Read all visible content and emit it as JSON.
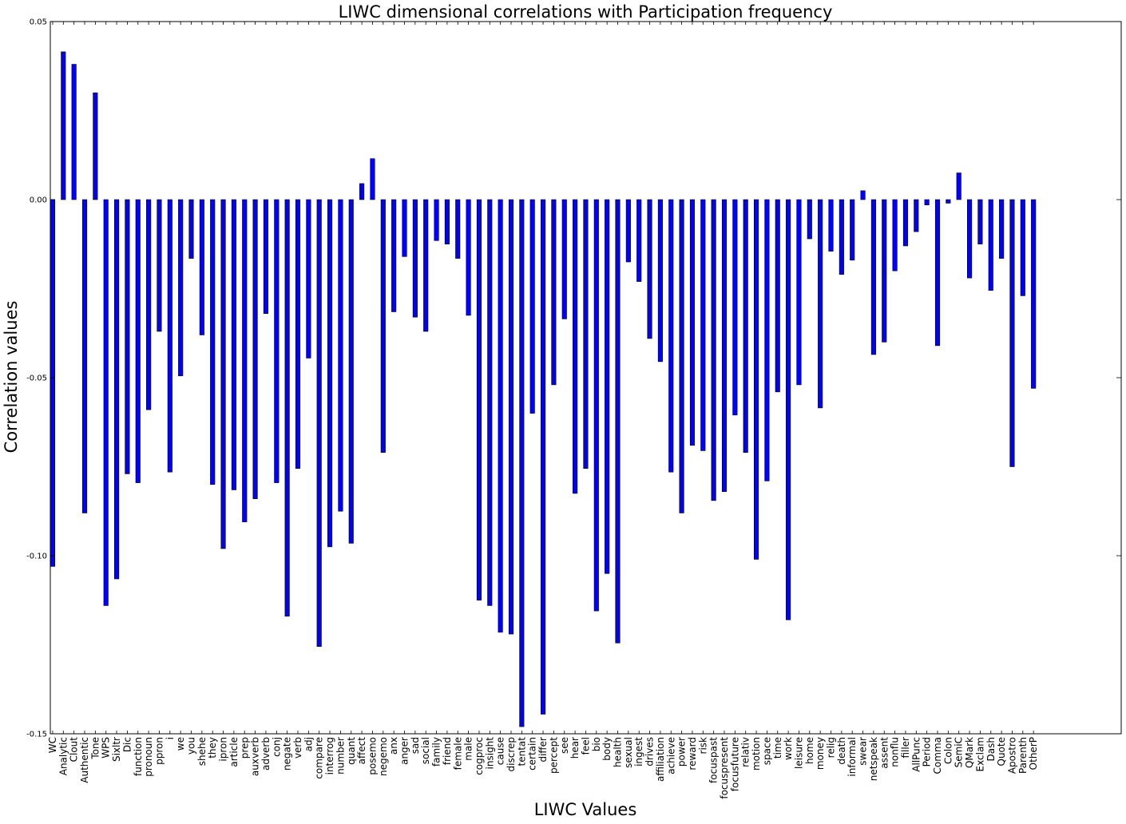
{
  "chart_data": {
    "type": "bar",
    "title": "LIWC dimensional correlations with Participation frequency",
    "xlabel": "LIWC Values",
    "ylabel": "Correlation values",
    "ylim": [
      -0.15,
      0.05
    ],
    "yticks": [
      "0.05",
      "0.00",
      "-0.05",
      "-0.10",
      "-0.15"
    ],
    "ytick_values": [
      0.05,
      0.0,
      -0.05,
      -0.1,
      -0.15
    ],
    "bar_color": "#0000ff",
    "grid": false,
    "categories": [
      "WC",
      "Analytic",
      "Clout",
      "Authentic",
      "Tone",
      "WPS",
      "Sixltr",
      "Dic",
      "function",
      "pronoun",
      "ppron",
      "i",
      "we",
      "you",
      "shehe",
      "they",
      "ipron",
      "article",
      "prep",
      "auxverb",
      "adverb",
      "conj",
      "negate",
      "verb",
      "adj",
      "compare",
      "interrog",
      "number",
      "quant",
      "affect",
      "posemo",
      "negemo",
      "anx",
      "anger",
      "sad",
      "social",
      "family",
      "friend",
      "female",
      "male",
      "cogproc",
      "insight",
      "cause",
      "discrep",
      "tentat",
      "certain",
      "differ",
      "percept",
      "see",
      "hear",
      "feel",
      "bio",
      "body",
      "health",
      "sexual",
      "ingest",
      "drives",
      "affiliation",
      "achieve",
      "power",
      "reward",
      "risk",
      "focuspast",
      "focuspresent",
      "focusfuture",
      "relativ",
      "motion",
      "space",
      "time",
      "work",
      "leisure",
      "home",
      "money",
      "relig",
      "death",
      "informal",
      "swear",
      "netspeak",
      "assent",
      "nonflu",
      "filler",
      "AllPunc",
      "Period",
      "Comma",
      "Colon",
      "SemiC",
      "QMark",
      "Exclam",
      "Dash",
      "Quote",
      "Apostro",
      "Parenth",
      "OtherP"
    ],
    "values": [
      -0.103,
      0.0415,
      0.038,
      -0.088,
      0.03,
      -0.114,
      -0.1065,
      -0.077,
      -0.0795,
      -0.059,
      -0.037,
      -0.0765,
      -0.0495,
      -0.0165,
      -0.038,
      -0.08,
      -0.098,
      -0.0815,
      -0.0905,
      -0.084,
      -0.032,
      -0.0795,
      -0.117,
      -0.0755,
      -0.0445,
      -0.1255,
      -0.0975,
      -0.0875,
      -0.0965,
      0.0045,
      0.0115,
      -0.071,
      -0.0315,
      -0.016,
      -0.033,
      -0.037,
      -0.0115,
      -0.0125,
      -0.0165,
      -0.0325,
      -0.1125,
      -0.114,
      -0.1215,
      -0.122,
      -0.148,
      -0.06,
      -0.1445,
      -0.052,
      -0.0335,
      -0.0825,
      -0.0755,
      -0.1155,
      -0.105,
      -0.1245,
      -0.0175,
      -0.023,
      -0.039,
      -0.0455,
      -0.0765,
      -0.088,
      -0.069,
      -0.0705,
      -0.0845,
      -0.082,
      -0.0605,
      -0.071,
      -0.101,
      -0.079,
      -0.054,
      -0.118,
      -0.052,
      -0.011,
      -0.0585,
      -0.0145,
      -0.021,
      -0.017,
      0.0025,
      -0.0435,
      -0.04,
      -0.02,
      -0.013,
      -0.009,
      -0.0015,
      -0.041,
      -0.001,
      0.0075,
      -0.022,
      -0.0125,
      -0.0255,
      -0.0165,
      -0.075,
      -0.027,
      -0.053
    ]
  }
}
